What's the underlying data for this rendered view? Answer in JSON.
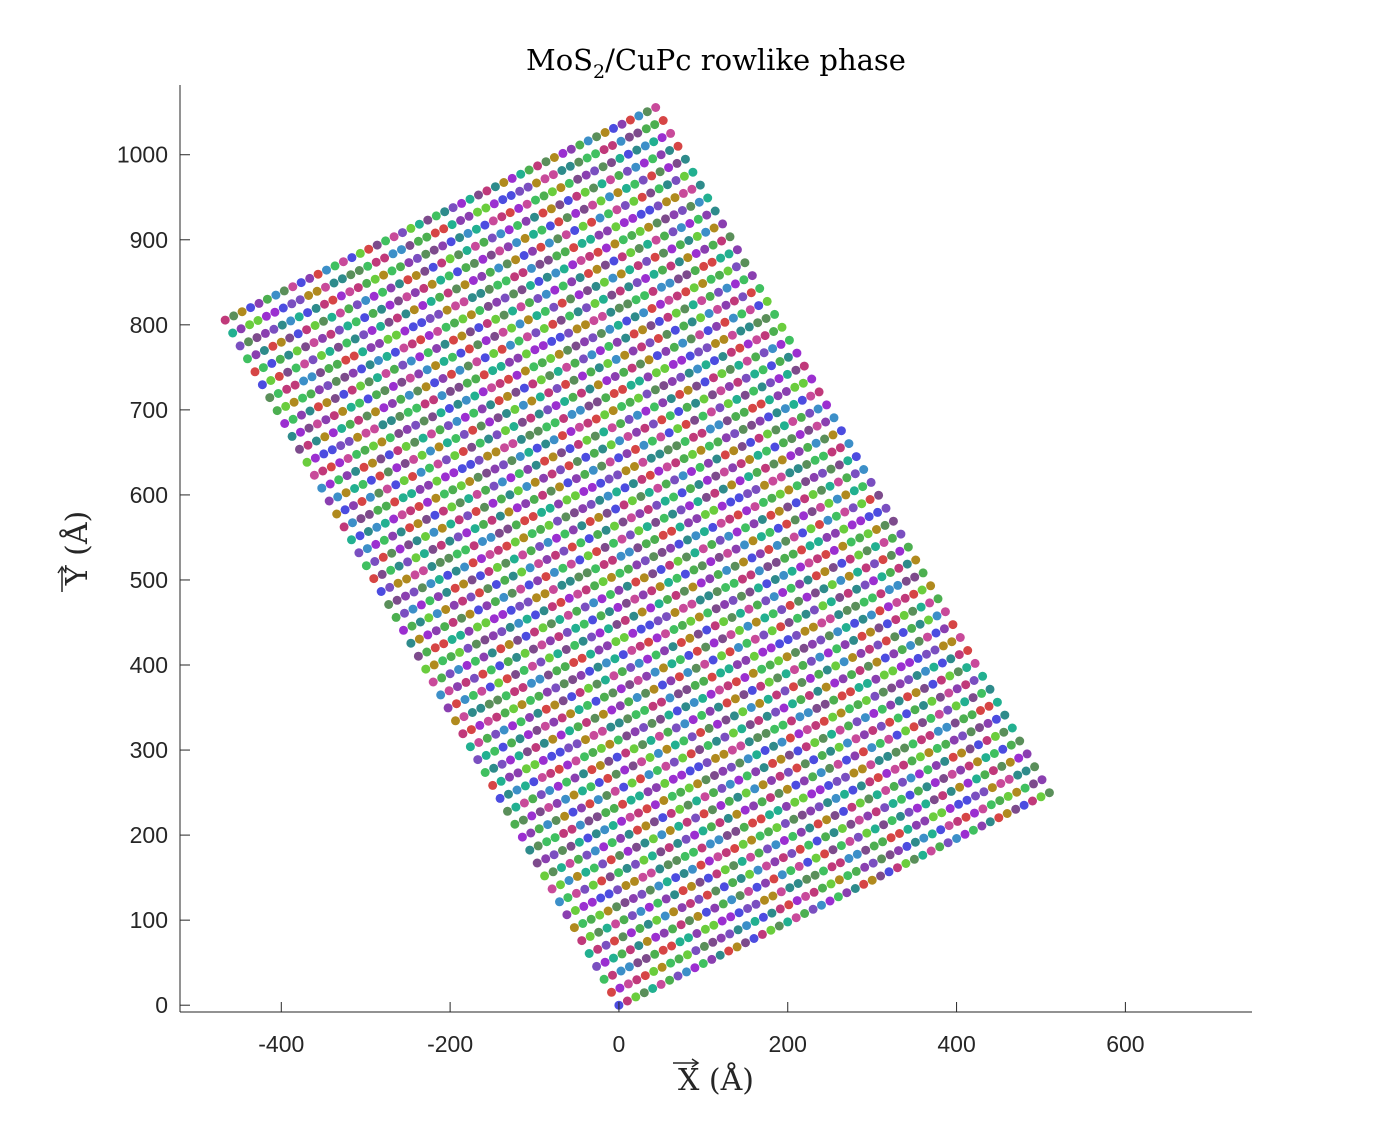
{
  "chart_data": {
    "type": "scatter",
    "title_main": "MoS",
    "title_sub": "2",
    "title_rest": "/CuPc rowlike phase",
    "xlabel": "X (Å)",
    "ylabel": "Y (Å)",
    "xlim": [
      -520,
      750
    ],
    "ylim": [
      -8,
      1082
    ],
    "xticks": [
      -400,
      -200,
      0,
      200,
      400,
      600
    ],
    "xtick_labels": [
      "-400",
      "-200",
      "0",
      "200",
      "400",
      "600"
    ],
    "yticks": [
      0,
      100,
      200,
      300,
      400,
      500,
      600,
      700,
      800,
      900,
      1000
    ],
    "ytick_labels": [
      "0",
      "100",
      "200",
      "300",
      "400",
      "500",
      "600",
      "700",
      "800",
      "900",
      "1000"
    ],
    "grid": false,
    "lattice": {
      "origin": [
        0,
        0
      ],
      "row_vector": [
        10.0,
        4.9
      ],
      "row_count": 54,
      "row_step": [
        -8.8,
        15.2
      ],
      "points_per_row": 52
    },
    "marker_colors": [
      "#4c4ce0",
      "#8a3fb0",
      "#4caf50",
      "#c0397a",
      "#2e8b8b",
      "#7a4fc0",
      "#6acd3d",
      "#d64545",
      "#3c8fc8",
      "#5a8f5a",
      "#b08a1e",
      "#9b2fd0",
      "#22b090",
      "#7d4b8c",
      "#40c060",
      "#c84a9a"
    ]
  }
}
